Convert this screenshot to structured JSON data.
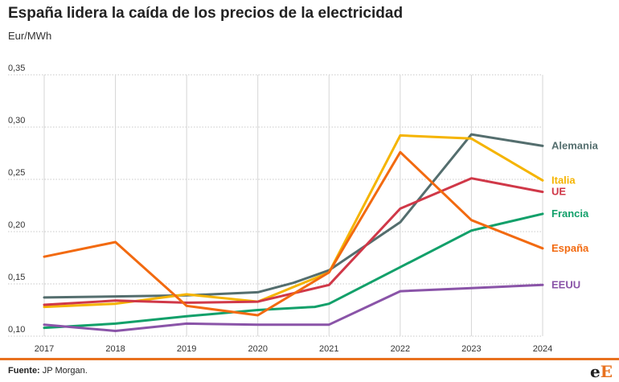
{
  "title": "España lidera la caída de los precios de la electricidad",
  "unit_label": "Eur/MWh",
  "source_label": "Fuente:",
  "source_text": "JP Morgan.",
  "logo": {
    "left": "e",
    "right": "E"
  },
  "chart_data": {
    "type": "line",
    "title": "España lidera la caída de los precios de la electricidad",
    "ylabel": "Eur/MWh",
    "ylim": [
      0.1,
      0.35
    ],
    "yticks": [
      "0,10",
      "0,15",
      "0,20",
      "0,25",
      "0,30",
      "0,35"
    ],
    "grid": true,
    "x_ticks": [
      "2017",
      "2018",
      "2019",
      "2020",
      "2021",
      "2022",
      "2023",
      "2024"
    ],
    "series": [
      {
        "name": "Alemania",
        "color": "#546e6e",
        "points": [
          [
            2017,
            0.137
          ],
          [
            2018,
            0.138
          ],
          [
            2019,
            0.139
          ],
          [
            2020,
            0.142
          ],
          [
            2020.5,
            0.151
          ],
          [
            2021,
            0.163
          ],
          [
            2022,
            0.209
          ],
          [
            2023,
            0.293
          ],
          [
            2024,
            0.282
          ]
        ]
      },
      {
        "name": "Italia",
        "color": "#f5b400",
        "points": [
          [
            2017,
            0.128
          ],
          [
            2018,
            0.131
          ],
          [
            2019,
            0.14
          ],
          [
            2020,
            0.133
          ],
          [
            2021,
            0.161
          ],
          [
            2022,
            0.292
          ],
          [
            2023,
            0.289
          ],
          [
            2024,
            0.249
          ]
        ]
      },
      {
        "name": "UE",
        "color": "#d03848",
        "points": [
          [
            2017,
            0.13
          ],
          [
            2018,
            0.134
          ],
          [
            2019,
            0.132
          ],
          [
            2020,
            0.133
          ],
          [
            2021,
            0.149
          ],
          [
            2022,
            0.222
          ],
          [
            2023,
            0.251
          ],
          [
            2024,
            0.238
          ]
        ]
      },
      {
        "name": "Francia",
        "color": "#12a06a",
        "points": [
          [
            2017,
            0.108
          ],
          [
            2018,
            0.112
          ],
          [
            2019,
            0.119
          ],
          [
            2020,
            0.125
          ],
          [
            2020.8,
            0.128
          ],
          [
            2021,
            0.131
          ],
          [
            2022,
            0.166
          ],
          [
            2023,
            0.201
          ],
          [
            2024,
            0.217
          ]
        ]
      },
      {
        "name": "España",
        "color": "#f26a10",
        "points": [
          [
            2017,
            0.176
          ],
          [
            2018,
            0.19
          ],
          [
            2019,
            0.129
          ],
          [
            2020,
            0.12
          ],
          [
            2021,
            0.161
          ],
          [
            2022,
            0.276
          ],
          [
            2023,
            0.211
          ],
          [
            2024,
            0.184
          ]
        ]
      },
      {
        "name": "EEUU",
        "color": "#8a54a8",
        "points": [
          [
            2017,
            0.111
          ],
          [
            2018,
            0.105
          ],
          [
            2019,
            0.112
          ],
          [
            2020,
            0.111
          ],
          [
            2021,
            0.111
          ],
          [
            2022,
            0.143
          ],
          [
            2023,
            0.146
          ],
          [
            2024,
            0.149
          ]
        ]
      }
    ]
  }
}
